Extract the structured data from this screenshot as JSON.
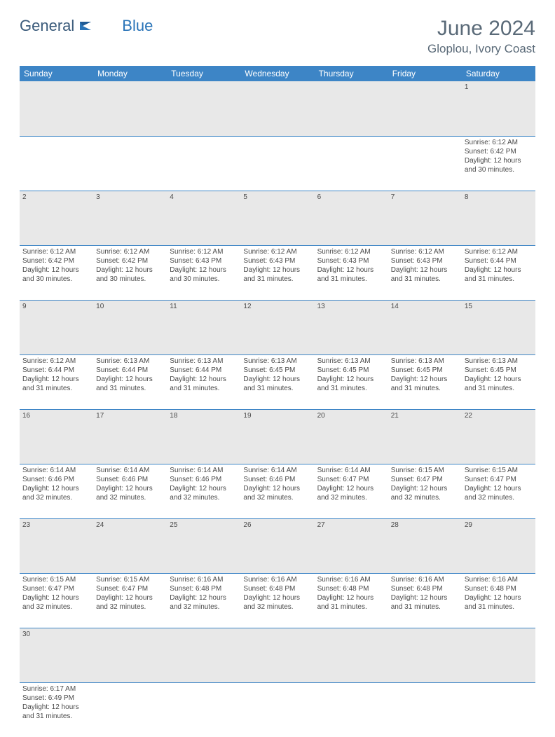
{
  "brand": {
    "word1": "General",
    "word2": "Blue",
    "logo_color": "#2a74b8"
  },
  "title": {
    "month": "June 2024",
    "location": "Gloplou, Ivory Coast"
  },
  "colors": {
    "header_bg": "#3d85c6",
    "header_text": "#ffffff",
    "daynum_bg": "#e8e8e8",
    "row_border": "#3d85c6",
    "text": "#4a4a4a",
    "title_text": "#5a6a78"
  },
  "weekdays": [
    "Sunday",
    "Monday",
    "Tuesday",
    "Wednesday",
    "Thursday",
    "Friday",
    "Saturday"
  ],
  "weeks": [
    {
      "nums": [
        "",
        "",
        "",
        "",
        "",
        "",
        "1"
      ],
      "cells": [
        null,
        null,
        null,
        null,
        null,
        null,
        {
          "sr": "Sunrise: 6:12 AM",
          "ss": "Sunset: 6:42 PM",
          "d1": "Daylight: 12 hours",
          "d2": "and 30 minutes."
        }
      ]
    },
    {
      "nums": [
        "2",
        "3",
        "4",
        "5",
        "6",
        "7",
        "8"
      ],
      "cells": [
        {
          "sr": "Sunrise: 6:12 AM",
          "ss": "Sunset: 6:42 PM",
          "d1": "Daylight: 12 hours",
          "d2": "and 30 minutes."
        },
        {
          "sr": "Sunrise: 6:12 AM",
          "ss": "Sunset: 6:42 PM",
          "d1": "Daylight: 12 hours",
          "d2": "and 30 minutes."
        },
        {
          "sr": "Sunrise: 6:12 AM",
          "ss": "Sunset: 6:43 PM",
          "d1": "Daylight: 12 hours",
          "d2": "and 30 minutes."
        },
        {
          "sr": "Sunrise: 6:12 AM",
          "ss": "Sunset: 6:43 PM",
          "d1": "Daylight: 12 hours",
          "d2": "and 31 minutes."
        },
        {
          "sr": "Sunrise: 6:12 AM",
          "ss": "Sunset: 6:43 PM",
          "d1": "Daylight: 12 hours",
          "d2": "and 31 minutes."
        },
        {
          "sr": "Sunrise: 6:12 AM",
          "ss": "Sunset: 6:43 PM",
          "d1": "Daylight: 12 hours",
          "d2": "and 31 minutes."
        },
        {
          "sr": "Sunrise: 6:12 AM",
          "ss": "Sunset: 6:44 PM",
          "d1": "Daylight: 12 hours",
          "d2": "and 31 minutes."
        }
      ]
    },
    {
      "nums": [
        "9",
        "10",
        "11",
        "12",
        "13",
        "14",
        "15"
      ],
      "cells": [
        {
          "sr": "Sunrise: 6:12 AM",
          "ss": "Sunset: 6:44 PM",
          "d1": "Daylight: 12 hours",
          "d2": "and 31 minutes."
        },
        {
          "sr": "Sunrise: 6:13 AM",
          "ss": "Sunset: 6:44 PM",
          "d1": "Daylight: 12 hours",
          "d2": "and 31 minutes."
        },
        {
          "sr": "Sunrise: 6:13 AM",
          "ss": "Sunset: 6:44 PM",
          "d1": "Daylight: 12 hours",
          "d2": "and 31 minutes."
        },
        {
          "sr": "Sunrise: 6:13 AM",
          "ss": "Sunset: 6:45 PM",
          "d1": "Daylight: 12 hours",
          "d2": "and 31 minutes."
        },
        {
          "sr": "Sunrise: 6:13 AM",
          "ss": "Sunset: 6:45 PM",
          "d1": "Daylight: 12 hours",
          "d2": "and 31 minutes."
        },
        {
          "sr": "Sunrise: 6:13 AM",
          "ss": "Sunset: 6:45 PM",
          "d1": "Daylight: 12 hours",
          "d2": "and 31 minutes."
        },
        {
          "sr": "Sunrise: 6:13 AM",
          "ss": "Sunset: 6:45 PM",
          "d1": "Daylight: 12 hours",
          "d2": "and 31 minutes."
        }
      ]
    },
    {
      "nums": [
        "16",
        "17",
        "18",
        "19",
        "20",
        "21",
        "22"
      ],
      "cells": [
        {
          "sr": "Sunrise: 6:14 AM",
          "ss": "Sunset: 6:46 PM",
          "d1": "Daylight: 12 hours",
          "d2": "and 32 minutes."
        },
        {
          "sr": "Sunrise: 6:14 AM",
          "ss": "Sunset: 6:46 PM",
          "d1": "Daylight: 12 hours",
          "d2": "and 32 minutes."
        },
        {
          "sr": "Sunrise: 6:14 AM",
          "ss": "Sunset: 6:46 PM",
          "d1": "Daylight: 12 hours",
          "d2": "and 32 minutes."
        },
        {
          "sr": "Sunrise: 6:14 AM",
          "ss": "Sunset: 6:46 PM",
          "d1": "Daylight: 12 hours",
          "d2": "and 32 minutes."
        },
        {
          "sr": "Sunrise: 6:14 AM",
          "ss": "Sunset: 6:47 PM",
          "d1": "Daylight: 12 hours",
          "d2": "and 32 minutes."
        },
        {
          "sr": "Sunrise: 6:15 AM",
          "ss": "Sunset: 6:47 PM",
          "d1": "Daylight: 12 hours",
          "d2": "and 32 minutes."
        },
        {
          "sr": "Sunrise: 6:15 AM",
          "ss": "Sunset: 6:47 PM",
          "d1": "Daylight: 12 hours",
          "d2": "and 32 minutes."
        }
      ]
    },
    {
      "nums": [
        "23",
        "24",
        "25",
        "26",
        "27",
        "28",
        "29"
      ],
      "cells": [
        {
          "sr": "Sunrise: 6:15 AM",
          "ss": "Sunset: 6:47 PM",
          "d1": "Daylight: 12 hours",
          "d2": "and 32 minutes."
        },
        {
          "sr": "Sunrise: 6:15 AM",
          "ss": "Sunset: 6:47 PM",
          "d1": "Daylight: 12 hours",
          "d2": "and 32 minutes."
        },
        {
          "sr": "Sunrise: 6:16 AM",
          "ss": "Sunset: 6:48 PM",
          "d1": "Daylight: 12 hours",
          "d2": "and 32 minutes."
        },
        {
          "sr": "Sunrise: 6:16 AM",
          "ss": "Sunset: 6:48 PM",
          "d1": "Daylight: 12 hours",
          "d2": "and 32 minutes."
        },
        {
          "sr": "Sunrise: 6:16 AM",
          "ss": "Sunset: 6:48 PM",
          "d1": "Daylight: 12 hours",
          "d2": "and 31 minutes."
        },
        {
          "sr": "Sunrise: 6:16 AM",
          "ss": "Sunset: 6:48 PM",
          "d1": "Daylight: 12 hours",
          "d2": "and 31 minutes."
        },
        {
          "sr": "Sunrise: 6:16 AM",
          "ss": "Sunset: 6:48 PM",
          "d1": "Daylight: 12 hours",
          "d2": "and 31 minutes."
        }
      ]
    },
    {
      "nums": [
        "30",
        "",
        "",
        "",
        "",
        "",
        ""
      ],
      "cells": [
        {
          "sr": "Sunrise: 6:17 AM",
          "ss": "Sunset: 6:49 PM",
          "d1": "Daylight: 12 hours",
          "d2": "and 31 minutes."
        },
        null,
        null,
        null,
        null,
        null,
        null
      ]
    }
  ]
}
